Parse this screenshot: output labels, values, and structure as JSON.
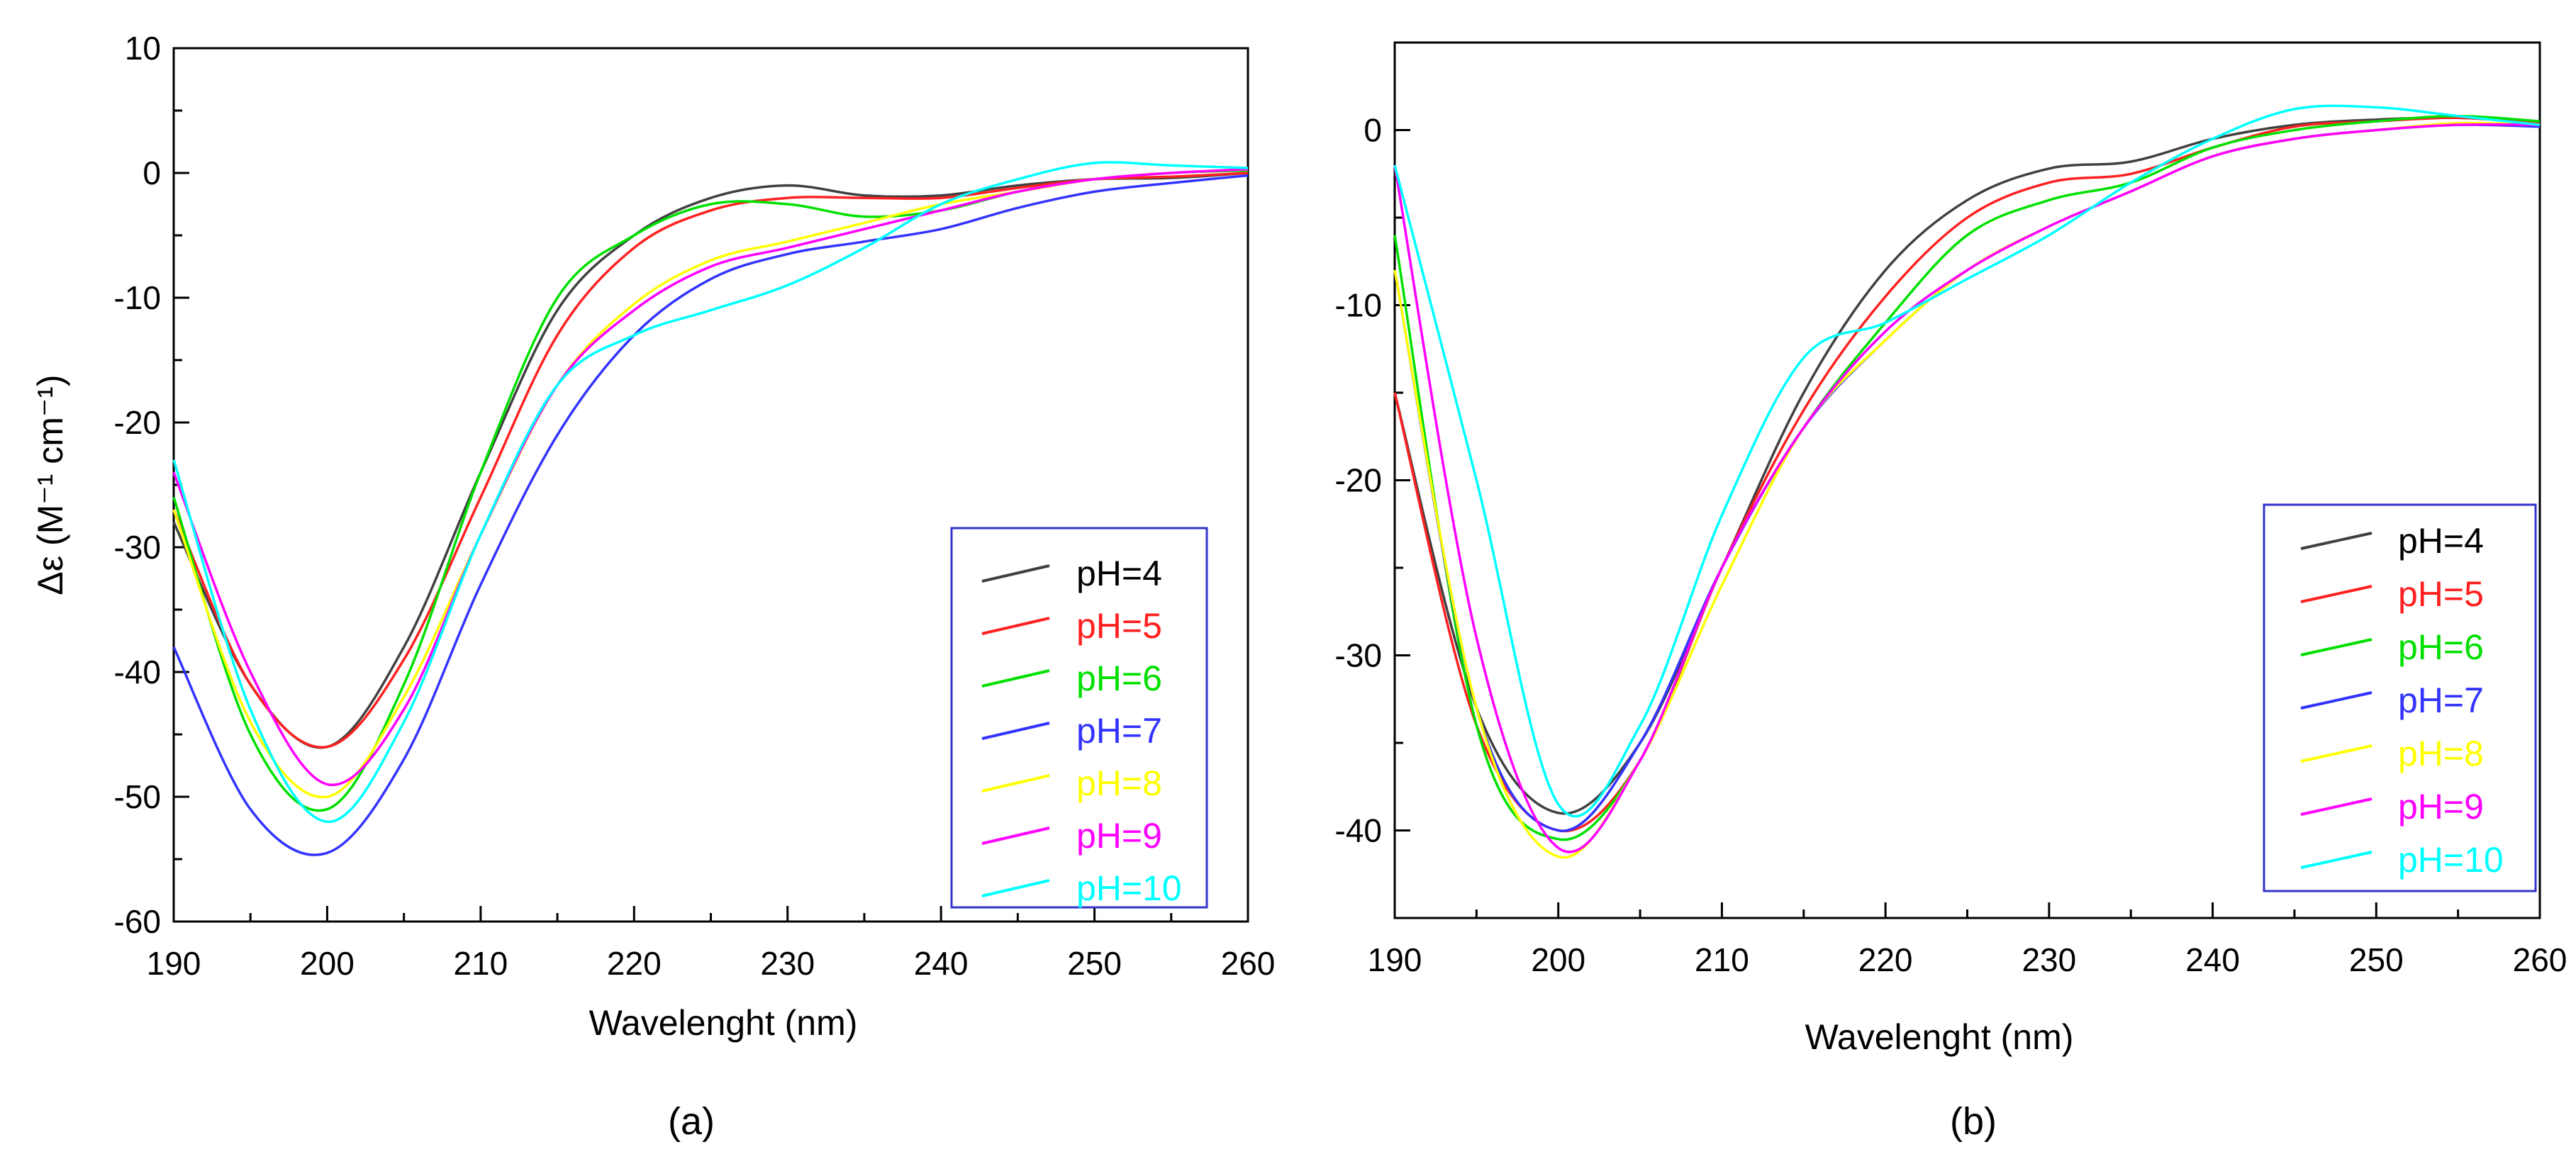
{
  "panel_labels": [
    "(a)",
    "(b)"
  ],
  "legend": [
    {
      "label": "pH=4",
      "color": "#404040"
    },
    {
      "label": "pH=5",
      "color": "#ff2020"
    },
    {
      "label": "pH=6",
      "color": "#00e000"
    },
    {
      "label": "pH=7",
      "color": "#3333ff"
    },
    {
      "label": "pH=8",
      "color": "#ffff00"
    },
    {
      "label": "pH=9",
      "color": "#ff00ff"
    },
    {
      "label": "pH=10",
      "color": "#00ffff"
    }
  ],
  "chart_data": [
    {
      "type": "line",
      "panel": "(a)",
      "xlabel": "Wavelenght (nm)",
      "ylabel": "Δε (M⁻¹ cm⁻¹)",
      "xlim": [
        190,
        260
      ],
      "ylim": [
        -60,
        10
      ],
      "xticks": [
        190,
        200,
        210,
        220,
        230,
        240,
        250,
        260
      ],
      "yticks": [
        10,
        0,
        -10,
        -20,
        -30,
        -40,
        -50,
        -60
      ],
      "legend_position": "bottom-right",
      "x": [
        190,
        195,
        200,
        205,
        210,
        215,
        220,
        225,
        230,
        235,
        240,
        245,
        250,
        255,
        260
      ],
      "series": [
        {
          "name": "pH=4",
          "values": [
            -28,
            -41,
            -46,
            -38,
            -24,
            -11,
            -5,
            -2,
            -1,
            -1.8,
            -1.8,
            -1,
            -0.5,
            -0.4,
            0
          ]
        },
        {
          "name": "pH=5",
          "values": [
            -27,
            -41,
            -46,
            -39,
            -26,
            -13,
            -6,
            -3,
            -2,
            -2,
            -2,
            -1.2,
            -0.5,
            -0.3,
            0
          ]
        },
        {
          "name": "pH=6",
          "values": [
            -26,
            -45,
            -51,
            -41,
            -24,
            -10,
            -5,
            -2.5,
            -2.5,
            -3.5,
            -3,
            -1.5,
            -0.5,
            0,
            0.2
          ]
        },
        {
          "name": "pH=7",
          "values": [
            -38,
            -51,
            -54.5,
            -47,
            -33,
            -21,
            -13,
            -8.5,
            -6.5,
            -5.5,
            -4.5,
            -2.8,
            -1.5,
            -0.8,
            -0.2
          ]
        },
        {
          "name": "pH=8",
          "values": [
            -27,
            -44,
            -50,
            -42,
            -29,
            -17,
            -10.5,
            -7,
            -5.5,
            -4,
            -2.5,
            -1.5,
            -0.5,
            0,
            0.3
          ]
        },
        {
          "name": "pH=9",
          "values": [
            -24,
            -40,
            -49,
            -43,
            -29,
            -17,
            -11,
            -7.5,
            -6,
            -4.5,
            -3,
            -1.5,
            -0.5,
            0,
            0.3
          ]
        },
        {
          "name": "pH=10",
          "values": [
            -23,
            -43,
            -52,
            -44,
            -29,
            -17,
            -13,
            -11,
            -9,
            -6,
            -2.5,
            -0.5,
            0.8,
            0.6,
            0.4
          ]
        }
      ]
    },
    {
      "type": "line",
      "panel": "(b)",
      "xlabel": "Wavelenght (nm)",
      "ylabel": "",
      "xlim": [
        190,
        260
      ],
      "ylim": [
        -45,
        5
      ],
      "xticks": [
        190,
        200,
        210,
        220,
        230,
        240,
        250,
        260
      ],
      "yticks": [
        0,
        -10,
        -20,
        -30,
        -40
      ],
      "legend_position": "bottom-right",
      "x": [
        190,
        195,
        200,
        205,
        210,
        215,
        220,
        225,
        230,
        235,
        240,
        245,
        250,
        255,
        260
      ],
      "series": [
        {
          "name": "pH=4",
          "values": [
            -15,
            -33,
            -39,
            -35,
            -25,
            -15,
            -8,
            -4,
            -2.2,
            -1.8,
            -0.5,
            0.3,
            0.6,
            0.7,
            0.4
          ]
        },
        {
          "name": "pH=5",
          "values": [
            -15,
            -34,
            -40,
            -36,
            -25,
            -16,
            -9.5,
            -5,
            -3,
            -2.5,
            -1,
            0.2,
            0.5,
            0.7,
            0.4
          ]
        },
        {
          "name": "pH=6",
          "values": [
            -6,
            -34,
            -40.5,
            -36,
            -25,
            -17,
            -11,
            -6,
            -4,
            -3,
            -1,
            0,
            0.5,
            0.8,
            0.5
          ]
        },
        {
          "name": "pH=7",
          "values": [
            -8,
            -33,
            -40,
            -35,
            -25,
            -17,
            -12,
            -8,
            -5.5,
            -3.5,
            -1.5,
            -0.5,
            0,
            0.3,
            0.2
          ]
        },
        {
          "name": "pH=8",
          "values": [
            -8,
            -33,
            -41.5,
            -36,
            -26,
            -17,
            -12,
            -8,
            -5.5,
            -3.5,
            -1.5,
            -0.5,
            0,
            0.4,
            0.3
          ]
        },
        {
          "name": "pH=9",
          "values": [
            -2,
            -29,
            -41,
            -36,
            -25,
            -17,
            -11.5,
            -8,
            -5.5,
            -3.5,
            -1.5,
            -0.5,
            0,
            0.3,
            0.3
          ]
        },
        {
          "name": "pH=10",
          "values": [
            -2,
            -20,
            -38.5,
            -34,
            -22,
            -13,
            -11,
            -8.5,
            -6,
            -3,
            -0.5,
            1.2,
            1.3,
            0.8,
            0.3
          ]
        }
      ]
    }
  ]
}
